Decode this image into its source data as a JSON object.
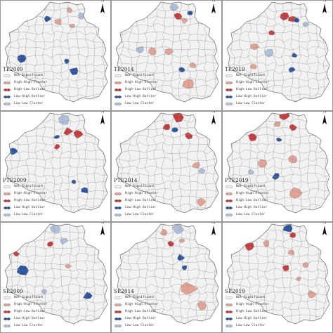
{
  "colors": {
    "not_significant": "#f2f2f2",
    "outline": "#8c8c8c",
    "high_high": "#e3a394",
    "high_low": "#c83a3c",
    "low_high": "#2b55a0",
    "low_low": "#aebfdb"
  },
  "legend_labels": [
    "Not Significant",
    "High-High Cluster",
    "High-Low Outlier",
    "Low-High Outlier",
    "Low-Low Cluster"
  ],
  "legend_classes": [
    "not_significant",
    "high_high",
    "high_low",
    "low_high",
    "low_low"
  ],
  "north_label": "N",
  "panels": [
    {
      "label": "TE2009",
      "highlights": [
        {
          "c": "low_low",
          "x": 60,
          "y": 8,
          "r": 7
        },
        {
          "c": "low_high",
          "x": 66,
          "y": 26,
          "r": 5
        },
        {
          "c": "high_high",
          "x": 82,
          "y": 30,
          "r": 5
        },
        {
          "c": "high_high",
          "x": 98,
          "y": 14,
          "r": 5
        },
        {
          "c": "low_low",
          "x": 114,
          "y": 22,
          "r": 5
        },
        {
          "c": "high_high",
          "x": 102,
          "y": 36,
          "r": 4
        },
        {
          "c": "low_high",
          "x": 30,
          "y": 82,
          "r": 7
        },
        {
          "c": "low_high",
          "x": 104,
          "y": 100,
          "r": 6
        },
        {
          "c": "low_high",
          "x": 94,
          "y": 86,
          "r": 4
        }
      ]
    },
    {
      "label": "TE2014",
      "highlights": [
        {
          "c": "low_low",
          "x": 88,
          "y": 10,
          "r": 6
        },
        {
          "c": "high_low",
          "x": 94,
          "y": 22,
          "r": 6
        },
        {
          "c": "high_high",
          "x": 104,
          "y": 28,
          "r": 5
        },
        {
          "c": "low_high",
          "x": 112,
          "y": 18,
          "r": 4
        },
        {
          "c": "low_low",
          "x": 40,
          "y": 70,
          "r": 6
        },
        {
          "c": "high_high",
          "x": 58,
          "y": 72,
          "r": 6
        },
        {
          "c": "high_high",
          "x": 82,
          "y": 72,
          "r": 6
        },
        {
          "c": "high_high",
          "x": 116,
          "y": 92,
          "r": 5
        },
        {
          "c": "high_high",
          "x": 110,
          "y": 118,
          "r": 9
        },
        {
          "c": "low_high",
          "x": 100,
          "y": 98,
          "r": 4
        }
      ]
    },
    {
      "label": "TE2019",
      "highlights": [
        {
          "c": "high_low",
          "x": 88,
          "y": 22,
          "r": 6
        },
        {
          "c": "high_low",
          "x": 100,
          "y": 26,
          "r": 6
        },
        {
          "c": "low_high",
          "x": 106,
          "y": 28,
          "r": 4
        },
        {
          "c": "high_low",
          "x": 70,
          "y": 46,
          "r": 5
        },
        {
          "c": "low_low",
          "x": 66,
          "y": 74,
          "r": 6
        },
        {
          "c": "high_high",
          "x": 46,
          "y": 66,
          "r": 6
        },
        {
          "c": "high_high",
          "x": 44,
          "y": 94,
          "r": 4
        },
        {
          "c": "low_high",
          "x": 98,
          "y": 98,
          "r": 5
        },
        {
          "c": "low_high",
          "x": 102,
          "y": 78,
          "r": 4
        },
        {
          "c": "low_low",
          "x": 118,
          "y": 34,
          "r": 4
        }
      ]
    },
    {
      "label": "PTE2009",
      "highlights": [
        {
          "c": "low_low",
          "x": 90,
          "y": 12,
          "r": 8
        },
        {
          "c": "high_low",
          "x": 96,
          "y": 28,
          "r": 6
        },
        {
          "c": "high_low",
          "x": 110,
          "y": 32,
          "r": 6
        },
        {
          "c": "low_high",
          "x": 80,
          "y": 36,
          "r": 4
        },
        {
          "c": "high_low",
          "x": 80,
          "y": 50,
          "r": 4
        },
        {
          "c": "low_high",
          "x": 18,
          "y": 56,
          "r": 6
        },
        {
          "c": "low_high",
          "x": 104,
          "y": 100,
          "r": 4
        },
        {
          "c": "low_high",
          "x": 120,
          "y": 112,
          "r": 5
        }
      ]
    },
    {
      "label": "PTE2014",
      "highlights": [
        {
          "c": "high_low",
          "x": 94,
          "y": 8,
          "r": 7
        },
        {
          "c": "high_low",
          "x": 78,
          "y": 22,
          "r": 5
        },
        {
          "c": "low_high",
          "x": 90,
          "y": 26,
          "r": 4
        },
        {
          "c": "high_low",
          "x": 110,
          "y": 34,
          "r": 5
        },
        {
          "c": "high_high",
          "x": 120,
          "y": 76,
          "r": 5
        },
        {
          "c": "low_low",
          "x": 128,
          "y": 84,
          "r": 5
        },
        {
          "c": "high_high",
          "x": 128,
          "y": 128,
          "r": 7
        }
      ]
    },
    {
      "label": "PTE2019",
      "highlights": [
        {
          "c": "high_low",
          "x": 88,
          "y": 6,
          "r": 7
        },
        {
          "c": "high_high",
          "x": 78,
          "y": 18,
          "r": 5
        },
        {
          "c": "high_low",
          "x": 100,
          "y": 22,
          "r": 5
        },
        {
          "c": "high_low",
          "x": 42,
          "y": 36,
          "r": 6
        },
        {
          "c": "low_high",
          "x": 80,
          "y": 40,
          "r": 4
        },
        {
          "c": "high_high",
          "x": 56,
          "y": 74,
          "r": 6
        },
        {
          "c": "high_high",
          "x": 100,
          "y": 68,
          "r": 6
        },
        {
          "c": "low_high",
          "x": 76,
          "y": 92,
          "r": 5
        },
        {
          "c": "high_high",
          "x": 104,
          "y": 116,
          "r": 8
        },
        {
          "c": "low_low",
          "x": 40,
          "y": 86,
          "r": 4
        }
      ]
    },
    {
      "label": "SE2009",
      "highlights": [
        {
          "c": "low_low",
          "x": 78,
          "y": 10,
          "r": 7
        },
        {
          "c": "low_low",
          "x": 90,
          "y": 26,
          "r": 5
        },
        {
          "c": "low_low",
          "x": 20,
          "y": 26,
          "r": 5
        },
        {
          "c": "high_low",
          "x": 70,
          "y": 30,
          "r": 4
        },
        {
          "c": "high_low",
          "x": 22,
          "y": 44,
          "r": 4
        },
        {
          "c": "low_high",
          "x": 30,
          "y": 68,
          "r": 8
        },
        {
          "c": "low_high",
          "x": 124,
          "y": 104,
          "r": 6
        },
        {
          "c": "high_high",
          "x": 96,
          "y": 62,
          "r": 4
        },
        {
          "c": "low_low",
          "x": 62,
          "y": 98,
          "r": 4
        }
      ]
    },
    {
      "label": "SE2014",
      "highlights": [
        {
          "c": "low_low",
          "x": 94,
          "y": 10,
          "r": 7
        },
        {
          "c": "high_high",
          "x": 74,
          "y": 14,
          "r": 5
        },
        {
          "c": "high_high",
          "x": 100,
          "y": 26,
          "r": 4
        },
        {
          "c": "high_low",
          "x": 84,
          "y": 30,
          "r": 4
        },
        {
          "c": "low_high",
          "x": 98,
          "y": 50,
          "r": 5
        },
        {
          "c": "low_high",
          "x": 104,
          "y": 64,
          "r": 4
        },
        {
          "c": "high_high",
          "x": 108,
          "y": 94,
          "r": 12
        },
        {
          "c": "high_high",
          "x": 128,
          "y": 118,
          "r": 7
        }
      ]
    },
    {
      "label": "SE2019",
      "highlights": [
        {
          "c": "low_high",
          "x": 92,
          "y": 8,
          "r": 7
        },
        {
          "c": "high_low",
          "x": 100,
          "y": 18,
          "r": 5
        },
        {
          "c": "high_low",
          "x": 38,
          "y": 34,
          "r": 7
        },
        {
          "c": "high_high",
          "x": 62,
          "y": 30,
          "r": 5
        },
        {
          "c": "high_high",
          "x": 98,
          "y": 42,
          "r": 5
        },
        {
          "c": "high_high",
          "x": 118,
          "y": 60,
          "r": 5
        },
        {
          "c": "high_low",
          "x": 90,
          "y": 64,
          "r": 5
        },
        {
          "c": "high_high",
          "x": 108,
          "y": 80,
          "r": 4
        },
        {
          "c": "high_high",
          "x": 126,
          "y": 102,
          "r": 6
        }
      ]
    }
  ]
}
